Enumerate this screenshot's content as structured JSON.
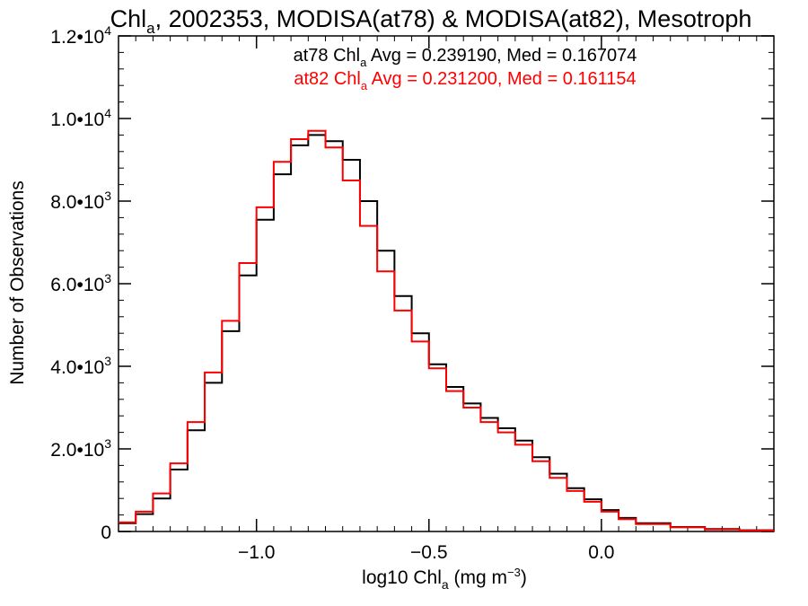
{
  "chart_data": {
    "type": "line",
    "title": {
      "prefix": "Chl",
      "subscript": "a",
      "suffix": ", 2002353, MODISA(at78) & MODISA(at82), Mesotroph"
    },
    "xlabel": {
      "prefix": "log10 Chl",
      "subscript": "a",
      "middle": " (mg m",
      "superscript": "−3",
      "suffix": ")"
    },
    "ylabel": "Number of Observations",
    "xlim": [
      -1.4,
      0.5
    ],
    "ylim": [
      0,
      12000
    ],
    "x_ticks": [
      {
        "value": -1.0,
        "label": "−1.0"
      },
      {
        "value": -0.5,
        "label": "−0.5"
      },
      {
        "value": 0.0,
        "label": "0.0"
      }
    ],
    "y_ticks": [
      {
        "value": 0,
        "mantissa": "0",
        "exponent": ""
      },
      {
        "value": 2000,
        "mantissa": "2.0•10",
        "exponent": "3"
      },
      {
        "value": 4000,
        "mantissa": "4.0•10",
        "exponent": "3"
      },
      {
        "value": 6000,
        "mantissa": "6.0•10",
        "exponent": "3"
      },
      {
        "value": 8000,
        "mantissa": "8.0•10",
        "exponent": "3"
      },
      {
        "value": 10000,
        "mantissa": "1.0•10",
        "exponent": "4"
      },
      {
        "value": 12000,
        "mantissa": "1.2•10",
        "exponent": "4"
      }
    ],
    "annotations": [
      {
        "name_part": "at78 Chl",
        "subscript": "a",
        "stats": " Avg = 0.239190, Med = 0.167074",
        "color": "#000000"
      },
      {
        "name_part": "at82 Chl",
        "subscript": "a",
        "stats": " Avg = 0.231200, Med = 0.161154",
        "color": "#ff0000"
      }
    ],
    "series": [
      {
        "color": "#000000",
        "x": [
          -1.4,
          -1.35,
          -1.3,
          -1.25,
          -1.2,
          -1.15,
          -1.1,
          -1.05,
          -1.0,
          -0.95,
          -0.9,
          -0.85,
          -0.8,
          -0.75,
          -0.7,
          -0.65,
          -0.6,
          -0.55,
          -0.5,
          -0.45,
          -0.4,
          -0.35,
          -0.3,
          -0.25,
          -0.2,
          -0.15,
          -0.1,
          -0.05,
          0.0,
          0.05,
          0.1,
          0.2,
          0.3,
          0.4,
          0.5
        ],
        "y": [
          200,
          420,
          800,
          1500,
          2450,
          3600,
          4850,
          6200,
          7550,
          8650,
          9350,
          9600,
          9450,
          9000,
          8000,
          6800,
          5700,
          4800,
          4050,
          3500,
          3100,
          2750,
          2500,
          2200,
          1800,
          1400,
          1050,
          780,
          520,
          330,
          200,
          110,
          60,
          30,
          10
        ]
      },
      {
        "color": "#ff0000",
        "x": [
          -1.4,
          -1.35,
          -1.3,
          -1.25,
          -1.2,
          -1.15,
          -1.1,
          -1.05,
          -1.0,
          -0.95,
          -0.9,
          -0.85,
          -0.8,
          -0.75,
          -0.7,
          -0.65,
          -0.6,
          -0.55,
          -0.5,
          -0.45,
          -0.4,
          -0.35,
          -0.3,
          -0.25,
          -0.2,
          -0.15,
          -0.1,
          -0.05,
          0.0,
          0.05,
          0.1,
          0.2,
          0.3,
          0.4,
          0.5
        ],
        "y": [
          220,
          480,
          920,
          1650,
          2650,
          3850,
          5100,
          6500,
          7850,
          8950,
          9500,
          9700,
          9300,
          8500,
          7400,
          6300,
          5350,
          4600,
          3950,
          3400,
          3000,
          2650,
          2400,
          2100,
          1700,
          1300,
          980,
          720,
          480,
          300,
          180,
          100,
          50,
          25,
          10
        ]
      }
    ]
  }
}
